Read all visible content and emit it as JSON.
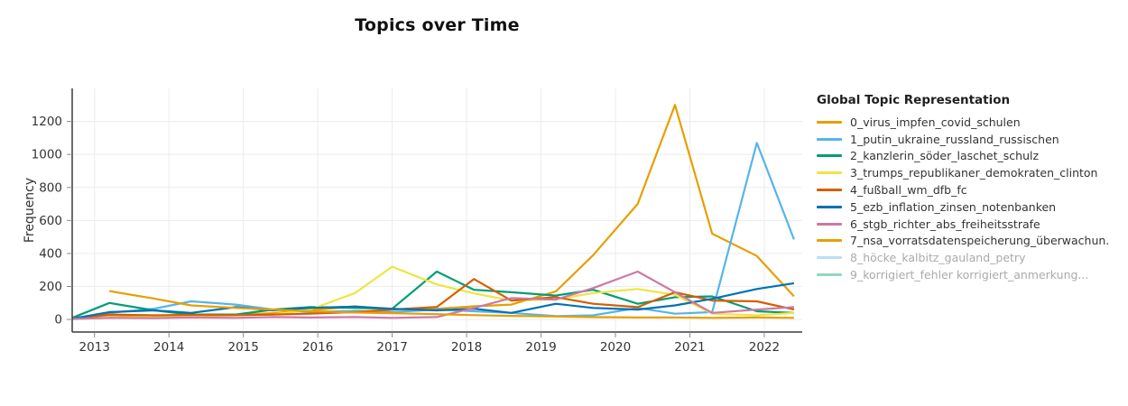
{
  "chart_data": {
    "type": "line",
    "title": "Topics over Time",
    "xlabel": "",
    "ylabel": "Frequency",
    "grid": true,
    "legend_position": "right",
    "xlim": [
      2012.7,
      2022.51
    ],
    "ylim": [
      -76,
      1400
    ],
    "xticks": [
      2013,
      2014,
      2015,
      2016,
      2017,
      2018,
      2019,
      2020,
      2021,
      2022
    ],
    "yticks": [
      0,
      200,
      400,
      600,
      800,
      1000,
      1200
    ],
    "x": [
      2012.7,
      2013.2,
      2013.8,
      2014.3,
      2014.9,
      2015.4,
      2015.9,
      2016.5,
      2017.0,
      2017.6,
      2018.1,
      2018.6,
      2019.2,
      2019.7,
      2020.3,
      2020.8,
      2021.3,
      2021.9,
      2022.4
    ],
    "series": [
      {
        "name": "0_virus_impfen_covid_schulen",
        "color": "#E69F00",
        "values": [
          10,
          25,
          20,
          30,
          28,
          38,
          55,
          80,
          62,
          65,
          80,
          90,
          170,
          390,
          700,
          1300,
          520,
          385,
          140
        ]
      },
      {
        "name": "1_putin_ukraine_russland_russischen",
        "color": "#56B4E9",
        "values": [
          5,
          40,
          65,
          110,
          90,
          60,
          45,
          52,
          45,
          60,
          50,
          40,
          20,
          25,
          70,
          35,
          45,
          1070,
          485
        ]
      },
      {
        "name": "2_kanzlerin_söder_laschet_schulz",
        "color": "#009E73",
        "values": [
          10,
          100,
          55,
          30,
          30,
          60,
          75,
          70,
          65,
          290,
          180,
          165,
          145,
          180,
          95,
          135,
          140,
          50,
          40
        ]
      },
      {
        "name": "3_trumps_republikaner_demokraten_clinton",
        "color": "#F0E442",
        "values": [
          2,
          10,
          15,
          20,
          25,
          30,
          60,
          160,
          320,
          212,
          158,
          115,
          122,
          160,
          185,
          150,
          35,
          25,
          40
        ]
      },
      {
        "name": "4_fußball_wm_dfb_fc",
        "color": "#D55E00",
        "values": [
          3,
          30,
          25,
          28,
          26,
          30,
          35,
          45,
          60,
          76,
          245,
          115,
          135,
          95,
          75,
          165,
          115,
          110,
          60
        ]
      },
      {
        "name": "5_ezb_inflation_zinsen_notenbanken",
        "color": "#0072B2",
        "values": [
          5,
          45,
          55,
          40,
          75,
          55,
          70,
          78,
          65,
          55,
          65,
          40,
          95,
          70,
          60,
          85,
          125,
          185,
          220
        ]
      },
      {
        "name": "6_stgb_richter_abs_freiheitsstrafe",
        "color": "#CC79A7",
        "values": [
          3,
          10,
          8,
          12,
          10,
          15,
          12,
          15,
          10,
          15,
          70,
          130,
          120,
          190,
          290,
          165,
          40,
          60,
          75
        ]
      },
      {
        "name": "7_nsa_vorratsdatenspeicherung_überwachun.",
        "color": "#E69F00",
        "values": [
          null,
          172,
          127,
          85,
          70,
          60,
          50,
          42,
          38,
          32,
          26,
          22,
          18,
          14,
          12,
          12,
          10,
          12,
          10
        ]
      }
    ],
    "hidden_series": [
      "8_höcke_kalbitz_gauland_petry",
      "9_korrigiert_fehler korrigiert_anmerkung..."
    ]
  },
  "legend": {
    "title": "Global Topic Representation",
    "items": [
      {
        "label": "0_virus_impfen_covid_schulen",
        "color": "#E69F00",
        "active": true
      },
      {
        "label": "1_putin_ukraine_russland_russischen",
        "color": "#56B4E9",
        "active": true
      },
      {
        "label": "2_kanzlerin_söder_laschet_schulz",
        "color": "#009E73",
        "active": true
      },
      {
        "label": "3_trumps_republikaner_demokraten_clinton",
        "color": "#F0E442",
        "active": true
      },
      {
        "label": "4_fußball_wm_dfb_fc",
        "color": "#D55E00",
        "active": true
      },
      {
        "label": "5_ezb_inflation_zinsen_notenbanken",
        "color": "#0072B2",
        "active": true
      },
      {
        "label": "6_stgb_richter_abs_freiheitsstrafe",
        "color": "#CC79A7",
        "active": true
      },
      {
        "label": "7_nsa_vorratsdatenspeicherung_überwachun.",
        "color": "#E69F00",
        "active": true
      },
      {
        "label": "8_höcke_kalbitz_gauland_petry",
        "color": "#56B4E9",
        "active": false
      },
      {
        "label": "9_korrigiert_fehler korrigiert_anmerkung...",
        "color": "#009E73",
        "active": false
      }
    ]
  }
}
